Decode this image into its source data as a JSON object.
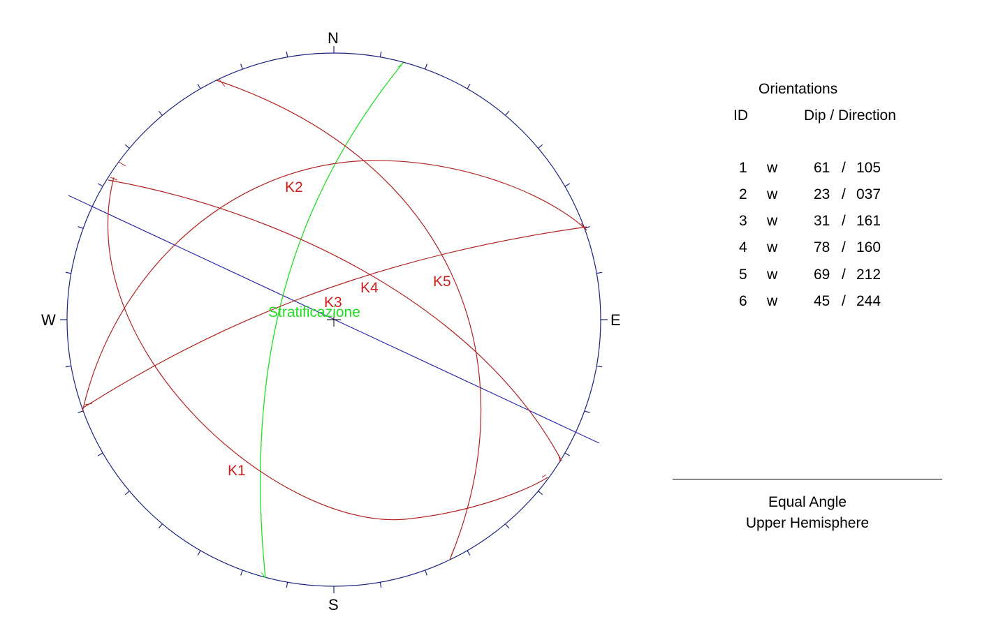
{
  "compass": {
    "north": "N",
    "south": "S",
    "east": "E",
    "west": "W"
  },
  "planes": [
    {
      "label": "K1",
      "color": "#cc1f1f"
    },
    {
      "label": "K2",
      "color": "#cc1f1f"
    },
    {
      "label": "K3",
      "color": "#cc1f1f"
    },
    {
      "label": "K4",
      "color": "#cc1f1f"
    },
    {
      "label": "K5",
      "color": "#cc1f1f"
    },
    {
      "label": "Stratificazione",
      "color": "#22dd22"
    }
  ],
  "colors": {
    "net_circle": "#1a237e",
    "planes": "#cc1f1f",
    "bedding": "#22dd22",
    "trend_line": "#2b2bb0"
  },
  "legend": {
    "title": "Orientations",
    "col_id": "ID",
    "col_dip": "Dip / Direction",
    "rows": [
      {
        "id": "1",
        "flag": "w",
        "dip": "61",
        "direction": "105"
      },
      {
        "id": "2",
        "flag": "w",
        "dip": "23",
        "direction": "037"
      },
      {
        "id": "3",
        "flag": "w",
        "dip": "31",
        "direction": "161"
      },
      {
        "id": "4",
        "flag": "w",
        "dip": "78",
        "direction": "160"
      },
      {
        "id": "5",
        "flag": "w",
        "dip": "69",
        "direction": "212"
      },
      {
        "id": "6",
        "flag": "w",
        "dip": "45",
        "direction": "244"
      }
    ]
  },
  "projection": {
    "type": "Equal Angle",
    "hemisphere": "Upper Hemisphere"
  }
}
